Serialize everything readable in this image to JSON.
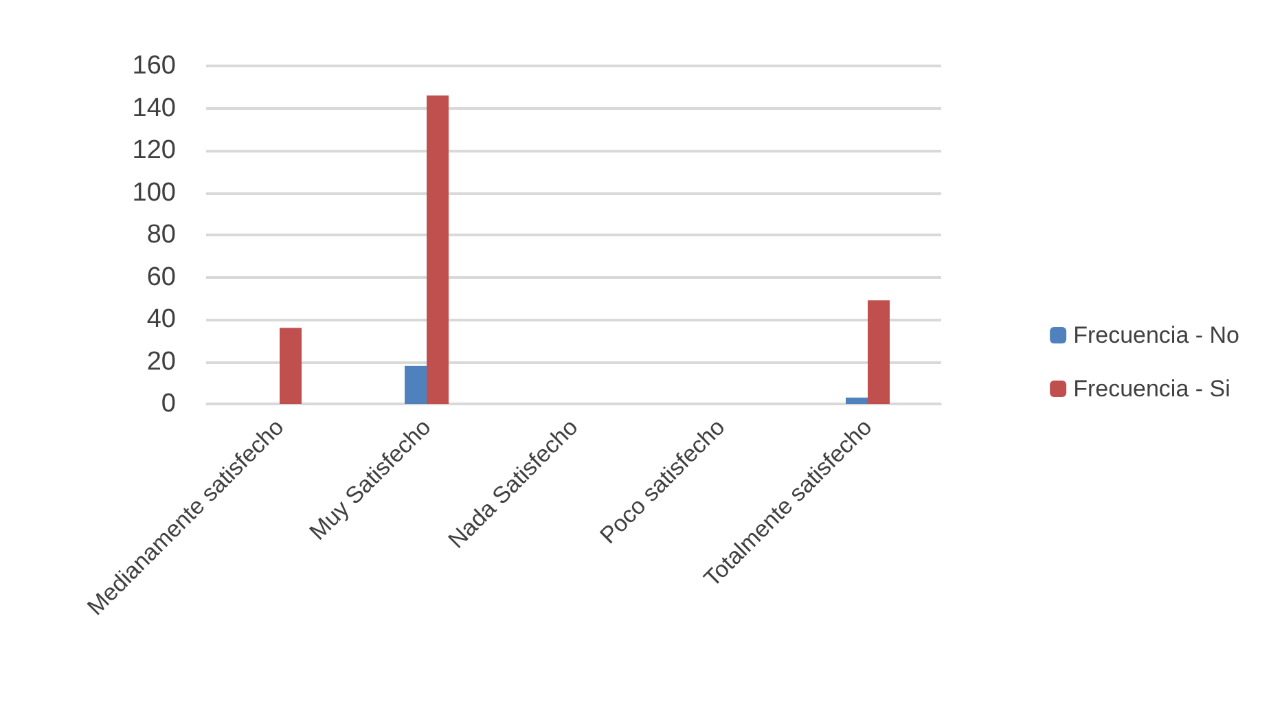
{
  "chart_data": {
    "type": "bar",
    "categories": [
      "Medianamente satisfecho",
      "Muy Satisfecho",
      "Nada Satisfecho",
      "Poco satisfecho",
      "Totalmente satisfecho"
    ],
    "series": [
      {
        "name": "Frecuencia - No",
        "color": "#4f81bd",
        "values": [
          0,
          18,
          0,
          0,
          3
        ]
      },
      {
        "name": "Frecuencia - Si",
        "color": "#c0504d",
        "values": [
          36,
          146,
          0,
          0,
          49
        ]
      }
    ],
    "ylim": [
      0,
      160
    ],
    "yticks": [
      0,
      20,
      40,
      60,
      80,
      100,
      120,
      140,
      160
    ],
    "grid": "y",
    "legend": "right"
  }
}
